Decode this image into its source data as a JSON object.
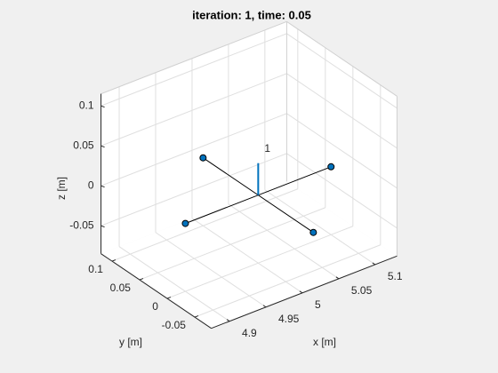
{
  "chart_data": {
    "type": "line3d",
    "title": "iteration: 1, time: 0.05",
    "xlabel": "x [m]",
    "ylabel": "y [m]",
    "zlabel": "z [m]",
    "xlim": [
      4.875,
      5.13
    ],
    "ylim": [
      -0.08,
      0.12
    ],
    "zlim": [
      -0.085,
      0.115
    ],
    "xticks": [
      4.9,
      4.95,
      5,
      5.05,
      5.1
    ],
    "yticks": [
      -0.05,
      0,
      0.05,
      0.1
    ],
    "zticks": [
      -0.05,
      0,
      0.05,
      0.1
    ],
    "grid": true,
    "series": [
      {
        "color": "#000000",
        "marker_color": "#0072bd",
        "x": [
          4.9,
          5.1
        ],
        "y": [
          0,
          0
        ],
        "z": [
          0,
          0
        ]
      },
      {
        "color": "#000000",
        "marker_color": "#0072bd",
        "x": [
          5,
          5
        ],
        "y": [
          0.1,
          -0.1
        ],
        "z": [
          0,
          0
        ]
      },
      {
        "color": "#0072bd",
        "x": [
          5,
          5
        ],
        "y": [
          0,
          0
        ],
        "z": [
          0,
          0.04
        ],
        "annotation": "1"
      }
    ]
  }
}
